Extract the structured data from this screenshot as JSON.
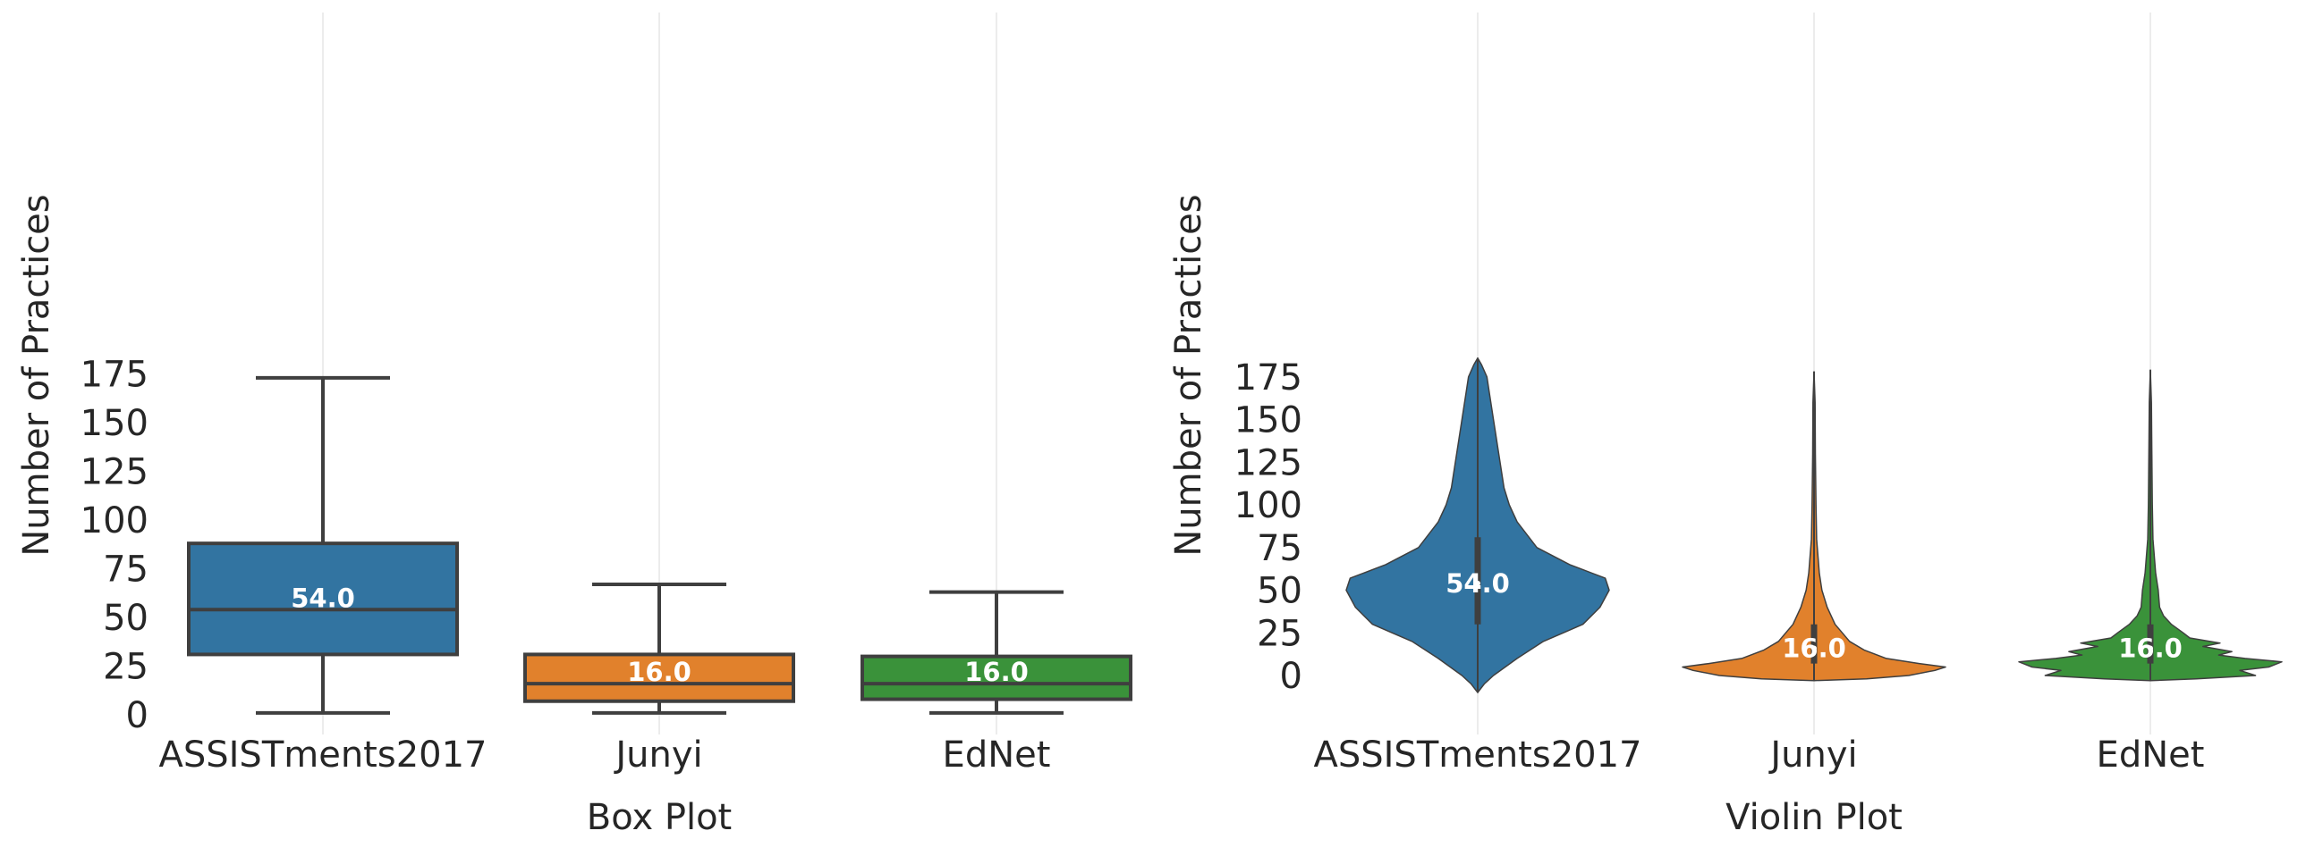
{
  "chart_data": [
    {
      "type": "box",
      "xlabel": "Box Plot",
      "ylabel": "Number of Practices",
      "categories": [
        "ASSISTments2017",
        "Junyi",
        "EdNet"
      ],
      "colors": [
        "#3274a1",
        "#e1812c",
        "#3a923a"
      ],
      "ylim": [
        -6,
        180
      ],
      "yticks": [
        "0",
        "25",
        "50",
        "75",
        "100",
        "125",
        "150",
        "175"
      ],
      "grid": "vertical",
      "series": [
        {
          "whisker_low": 1,
          "q1": 31,
          "median": 54,
          "q3": 88,
          "whisker_high": 173,
          "median_label": "54.0"
        },
        {
          "whisker_low": 1,
          "q1": 7,
          "median": 16,
          "q3": 31,
          "whisker_high": 67,
          "median_label": "16.0"
        },
        {
          "whisker_low": 1,
          "q1": 8,
          "median": 16,
          "q3": 30,
          "whisker_high": 63,
          "median_label": "16.0"
        }
      ]
    },
    {
      "type": "violin",
      "xlabel": "Violin Plot",
      "ylabel": "Number of Practices",
      "categories": [
        "ASSISTments2017",
        "Junyi",
        "EdNet"
      ],
      "colors": [
        "#3274a1",
        "#e1812c",
        "#3a923a"
      ],
      "ylim": [
        -20,
        188
      ],
      "yticks": [
        "0",
        "25",
        "50",
        "75",
        "100",
        "125",
        "150",
        "175"
      ],
      "grid": "vertical",
      "series": [
        {
          "median": 54,
          "median_label": "54.0",
          "q1": 30,
          "q3": 81,
          "density": [
            [
              -10,
              0.0
            ],
            [
              -5,
              0.05
            ],
            [
              0,
              0.12
            ],
            [
              10,
              0.3
            ],
            [
              20,
              0.5
            ],
            [
              25,
              0.65
            ],
            [
              30,
              0.8
            ],
            [
              40,
              0.93
            ],
            [
              50,
              1.0
            ],
            [
              57,
              0.97
            ],
            [
              65,
              0.7
            ],
            [
              75,
              0.45
            ],
            [
              90,
              0.3
            ],
            [
              100,
              0.24
            ],
            [
              110,
              0.2
            ],
            [
              130,
              0.16
            ],
            [
              150,
              0.12
            ],
            [
              165,
              0.09
            ],
            [
              175,
              0.07
            ],
            [
              182,
              0.03
            ],
            [
              186,
              0.0
            ]
          ]
        },
        {
          "median": 16,
          "median_label": "16.0",
          "q1": 7,
          "q3": 30,
          "density": [
            [
              -3,
              0.0
            ],
            [
              -2,
              0.4
            ],
            [
              0,
              0.72
            ],
            [
              3,
              0.92
            ],
            [
              5,
              1.0
            ],
            [
              7,
              0.8
            ],
            [
              10,
              0.55
            ],
            [
              15,
              0.38
            ],
            [
              20,
              0.27
            ],
            [
              30,
              0.16
            ],
            [
              40,
              0.1
            ],
            [
              50,
              0.06
            ],
            [
              60,
              0.04
            ],
            [
              80,
              0.02
            ],
            [
              100,
              0.015
            ],
            [
              130,
              0.01
            ],
            [
              160,
              0.008
            ],
            [
              178,
              0.0
            ]
          ]
        },
        {
          "median": 16,
          "median_label": "16.0",
          "q1": 7,
          "q3": 30,
          "density": [
            [
              -3,
              0.0
            ],
            [
              -2,
              0.35
            ],
            [
              0,
              0.8
            ],
            [
              3,
              0.68
            ],
            [
              5,
              0.9
            ],
            [
              8,
              1.0
            ],
            [
              10,
              0.72
            ],
            [
              12,
              0.52
            ],
            [
              14,
              0.62
            ],
            [
              17,
              0.4
            ],
            [
              19,
              0.53
            ],
            [
              22,
              0.3
            ],
            [
              25,
              0.25
            ],
            [
              30,
              0.16
            ],
            [
              35,
              0.1
            ],
            [
              40,
              0.07
            ],
            [
              50,
              0.06
            ],
            [
              60,
              0.04
            ],
            [
              80,
              0.02
            ],
            [
              100,
              0.015
            ],
            [
              140,
              0.01
            ],
            [
              160,
              0.008
            ],
            [
              179,
              0.0
            ]
          ]
        }
      ]
    }
  ]
}
